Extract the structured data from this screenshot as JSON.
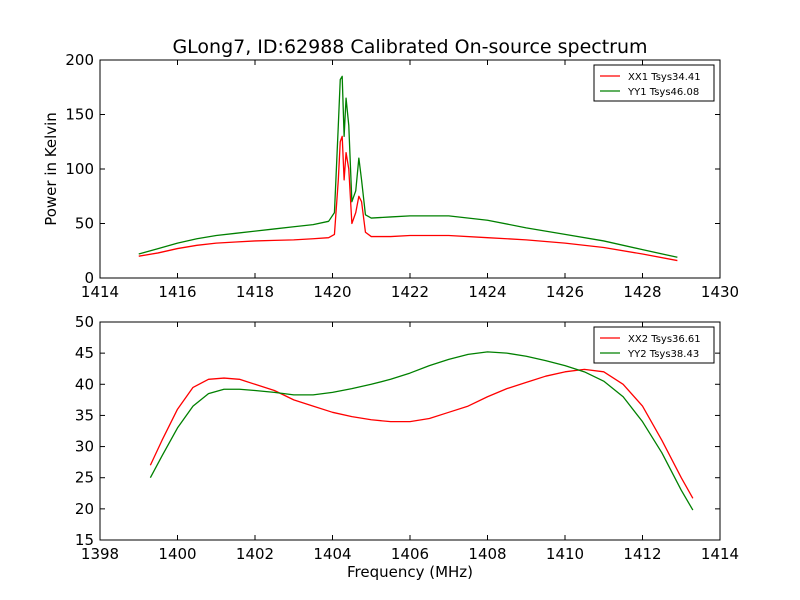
{
  "figure": {
    "title": "GLong7, ID:62988 Calibrated On-source spectrum"
  },
  "chart_data": [
    {
      "type": "line",
      "title": "GLong7, ID:62988 Calibrated On-source spectrum",
      "xlabel": "",
      "ylabel": "Power in Kelvin",
      "xlim": [
        1414,
        1430
      ],
      "ylim": [
        0,
        200
      ],
      "xticks": [
        1414,
        1416,
        1418,
        1420,
        1422,
        1424,
        1426,
        1428,
        1430
      ],
      "yticks": [
        0,
        50,
        100,
        150,
        200
      ],
      "grid": false,
      "legend_position": "top-right",
      "series": [
        {
          "name": "XX1 Tsys34.41",
          "color": "#ff0000",
          "points": [
            [
              1415.0,
              20
            ],
            [
              1415.5,
              23
            ],
            [
              1416.0,
              27
            ],
            [
              1416.5,
              30
            ],
            [
              1417.0,
              32
            ],
            [
              1417.5,
              33
            ],
            [
              1418.0,
              34
            ],
            [
              1418.5,
              34.5
            ],
            [
              1419.0,
              35
            ],
            [
              1419.5,
              36
            ],
            [
              1419.9,
              37
            ],
            [
              1420.05,
              40
            ],
            [
              1420.15,
              90
            ],
            [
              1420.2,
              125
            ],
            [
              1420.25,
              130
            ],
            [
              1420.3,
              90
            ],
            [
              1420.35,
              115
            ],
            [
              1420.42,
              100
            ],
            [
              1420.5,
              50
            ],
            [
              1420.6,
              60
            ],
            [
              1420.68,
              75
            ],
            [
              1420.75,
              70
            ],
            [
              1420.85,
              42
            ],
            [
              1421.0,
              38
            ],
            [
              1421.5,
              38
            ],
            [
              1422.0,
              39
            ],
            [
              1423.0,
              39
            ],
            [
              1424.0,
              37
            ],
            [
              1425.0,
              35
            ],
            [
              1426.0,
              32
            ],
            [
              1427.0,
              28
            ],
            [
              1428.0,
              22
            ],
            [
              1428.9,
              16
            ]
          ]
        },
        {
          "name": "YY1 Tsys46.08",
          "color": "#008000",
          "points": [
            [
              1415.0,
              22
            ],
            [
              1415.5,
              27
            ],
            [
              1416.0,
              32
            ],
            [
              1416.5,
              36
            ],
            [
              1417.0,
              39
            ],
            [
              1417.5,
              41
            ],
            [
              1418.0,
              43
            ],
            [
              1418.5,
              45
            ],
            [
              1419.0,
              47
            ],
            [
              1419.5,
              49
            ],
            [
              1419.9,
              52
            ],
            [
              1420.05,
              60
            ],
            [
              1420.15,
              140
            ],
            [
              1420.2,
              182
            ],
            [
              1420.25,
              185
            ],
            [
              1420.3,
              130
            ],
            [
              1420.35,
              165
            ],
            [
              1420.42,
              140
            ],
            [
              1420.5,
              70
            ],
            [
              1420.6,
              80
            ],
            [
              1420.68,
              110
            ],
            [
              1420.75,
              90
            ],
            [
              1420.85,
              58
            ],
            [
              1421.0,
              55
            ],
            [
              1421.5,
              56
            ],
            [
              1422.0,
              57
            ],
            [
              1423.0,
              57
            ],
            [
              1424.0,
              53
            ],
            [
              1425.0,
              46
            ],
            [
              1426.0,
              40
            ],
            [
              1427.0,
              34
            ],
            [
              1428.0,
              26
            ],
            [
              1428.9,
              19
            ]
          ]
        }
      ]
    },
    {
      "type": "line",
      "title": "",
      "xlabel": "Frequency (MHz)",
      "ylabel": "",
      "xlim": [
        1398,
        1414
      ],
      "ylim": [
        15,
        50
      ],
      "xticks": [
        1398,
        1400,
        1402,
        1404,
        1406,
        1408,
        1410,
        1412,
        1414
      ],
      "yticks": [
        15,
        20,
        25,
        30,
        35,
        40,
        45,
        50
      ],
      "grid": false,
      "legend_position": "top-right",
      "series": [
        {
          "name": "XX2 Tsys36.61",
          "color": "#ff0000",
          "points": [
            [
              1399.3,
              27
            ],
            [
              1399.6,
              31
            ],
            [
              1400.0,
              36
            ],
            [
              1400.4,
              39.5
            ],
            [
              1400.8,
              40.8
            ],
            [
              1401.2,
              41
            ],
            [
              1401.6,
              40.8
            ],
            [
              1402.0,
              40
            ],
            [
              1402.5,
              39
            ],
            [
              1403.0,
              37.5
            ],
            [
              1403.5,
              36.5
            ],
            [
              1404.0,
              35.5
            ],
            [
              1404.5,
              34.8
            ],
            [
              1405.0,
              34.3
            ],
            [
              1405.5,
              34
            ],
            [
              1406.0,
              34
            ],
            [
              1406.5,
              34.5
            ],
            [
              1407.0,
              35.5
            ],
            [
              1407.5,
              36.5
            ],
            [
              1408.0,
              38
            ],
            [
              1408.5,
              39.3
            ],
            [
              1409.0,
              40.3
            ],
            [
              1409.5,
              41.3
            ],
            [
              1410.0,
              42
            ],
            [
              1410.5,
              42.4
            ],
            [
              1411.0,
              42
            ],
            [
              1411.5,
              40
            ],
            [
              1412.0,
              36.5
            ],
            [
              1412.5,
              31
            ],
            [
              1413.0,
              25
            ],
            [
              1413.3,
              21.7
            ]
          ]
        },
        {
          "name": "YY2 Tsys38.43",
          "color": "#008000",
          "points": [
            [
              1399.3,
              25
            ],
            [
              1399.6,
              28.5
            ],
            [
              1400.0,
              33
            ],
            [
              1400.4,
              36.5
            ],
            [
              1400.8,
              38.5
            ],
            [
              1401.2,
              39.2
            ],
            [
              1401.6,
              39.2
            ],
            [
              1402.0,
              39
            ],
            [
              1402.5,
              38.7
            ],
            [
              1403.0,
              38.3
            ],
            [
              1403.5,
              38.3
            ],
            [
              1404.0,
              38.7
            ],
            [
              1404.5,
              39.3
            ],
            [
              1405.0,
              40
            ],
            [
              1405.5,
              40.8
            ],
            [
              1406.0,
              41.8
            ],
            [
              1406.5,
              43
            ],
            [
              1407.0,
              44
            ],
            [
              1407.5,
              44.8
            ],
            [
              1408.0,
              45.2
            ],
            [
              1408.5,
              45
            ],
            [
              1409.0,
              44.5
            ],
            [
              1409.5,
              43.8
            ],
            [
              1410.0,
              43
            ],
            [
              1410.5,
              42
            ],
            [
              1411.0,
              40.5
            ],
            [
              1411.5,
              38
            ],
            [
              1412.0,
              34
            ],
            [
              1412.5,
              29
            ],
            [
              1413.0,
              23
            ],
            [
              1413.3,
              19.8
            ]
          ]
        }
      ]
    }
  ]
}
